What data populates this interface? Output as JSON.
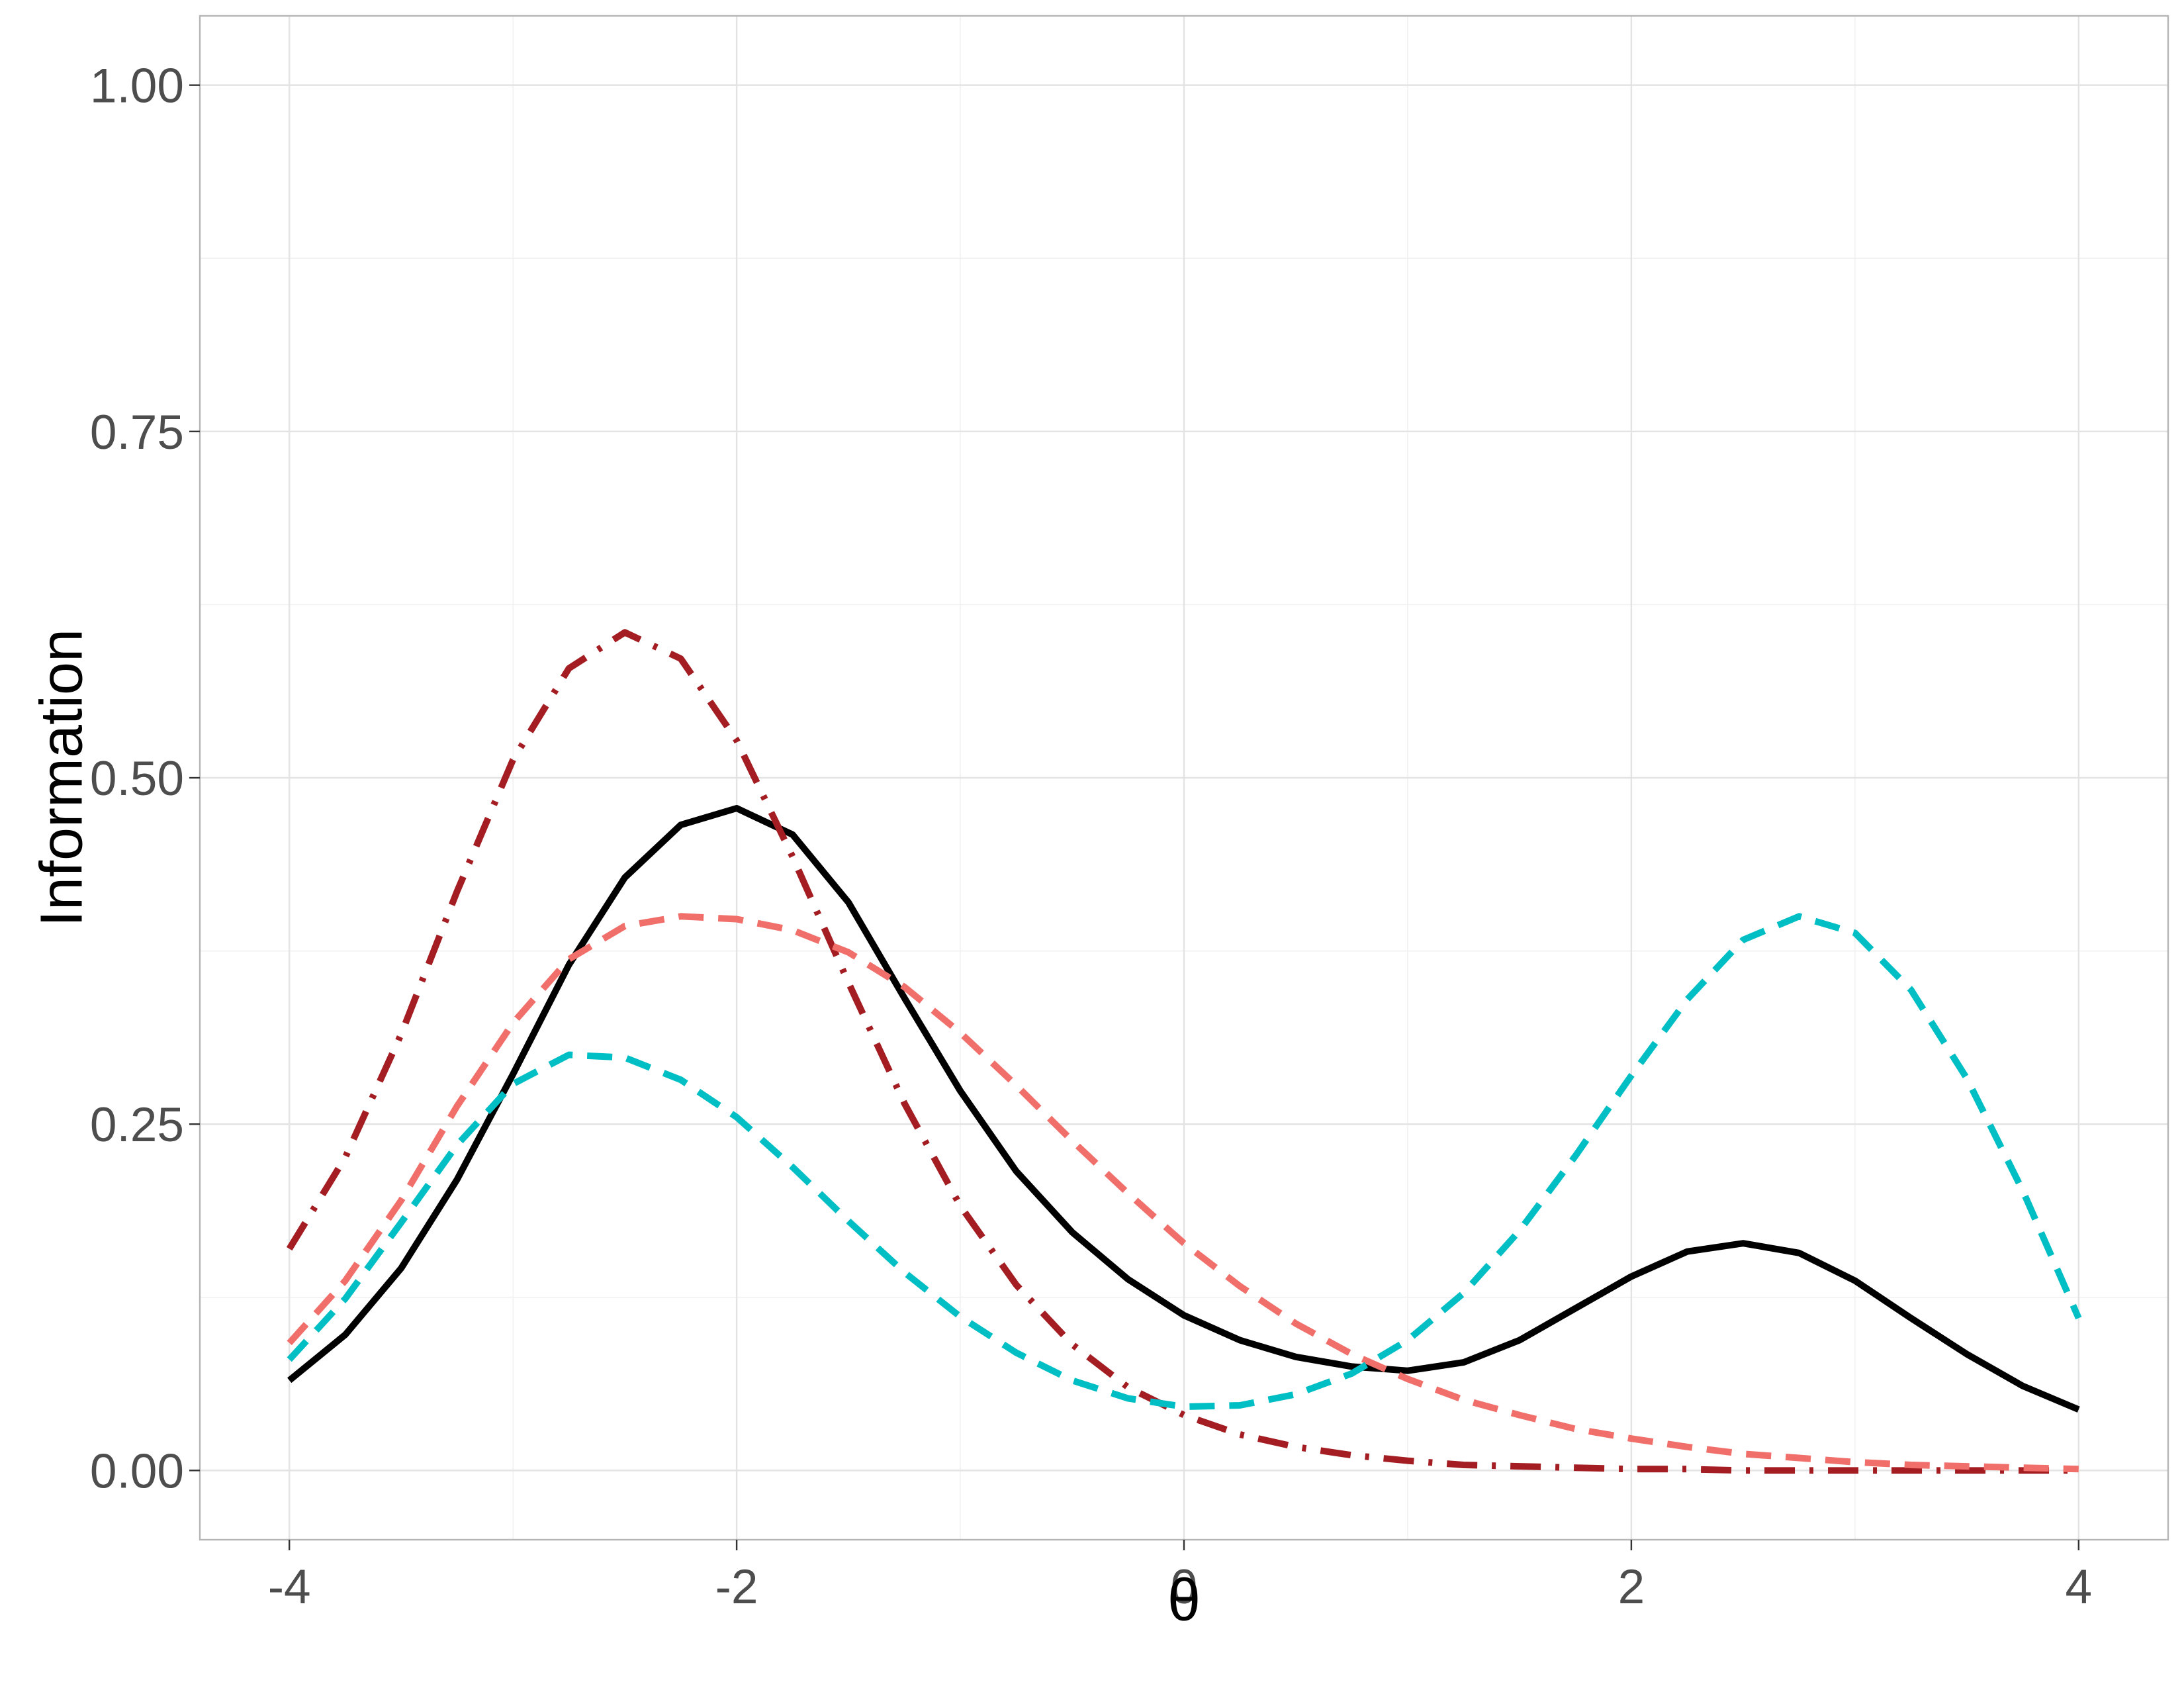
{
  "chart_data": {
    "type": "line",
    "title": "",
    "xlabel": "θ",
    "ylabel": "Information",
    "xlim": [
      -4.4,
      4.4
    ],
    "ylim": [
      -0.05,
      1.05
    ],
    "x_ticks": [
      -4,
      -2,
      0,
      2,
      4
    ],
    "x_tick_labels": [
      "-4",
      "-2",
      "0",
      "2",
      "4"
    ],
    "y_ticks": [
      0,
      0.25,
      0.5,
      0.75,
      1
    ],
    "y_tick_labels": [
      "0.00",
      "0.25",
      "0.50",
      "0.75",
      "1.00"
    ],
    "x_minor_ticks": [
      -3,
      -1,
      1,
      3
    ],
    "y_minor_ticks": [
      0.125,
      0.375,
      0.625,
      0.875
    ],
    "grid": true,
    "legend": "none",
    "x": [
      -4,
      -3.75,
      -3.5,
      -3.25,
      -3,
      -2.75,
      -2.5,
      -2.25,
      -2,
      -1.75,
      -1.5,
      -1.25,
      -1,
      -0.75,
      -0.5,
      -0.25,
      0,
      0.25,
      0.5,
      0.75,
      1,
      1.25,
      1.5,
      1.75,
      2,
      2.25,
      2.5,
      2.75,
      3,
      3.25,
      3.5,
      3.75,
      4
    ],
    "series": [
      {
        "color": "#000000",
        "dash": "solid",
        "values": [
          0.065,
          0.098,
          0.146,
          0.21,
          0.286,
          0.365,
          0.428,
          0.466,
          0.478,
          0.459,
          0.41,
          0.341,
          0.274,
          0.216,
          0.172,
          0.138,
          0.112,
          0.094,
          0.082,
          0.075,
          0.072,
          0.078,
          0.094,
          0.117,
          0.14,
          0.158,
          0.164,
          0.157,
          0.137,
          0.11,
          0.084,
          0.061,
          0.044
        ]
      },
      {
        "color": "#a31d22",
        "dash": "dashdot",
        "values": [
          0.16,
          0.226,
          0.315,
          0.418,
          0.513,
          0.579,
          0.605,
          0.586,
          0.527,
          0.443,
          0.352,
          0.265,
          0.191,
          0.134,
          0.091,
          0.06,
          0.04,
          0.026,
          0.017,
          0.011,
          0.007,
          0.004,
          0.003,
          0.002,
          0.001,
          0.001,
          0.0,
          0.0,
          0.0,
          0.0,
          0.0,
          0.0,
          0.0
        ]
      },
      {
        "color": "#f16f6a",
        "dash": "dashed",
        "values": [
          0.092,
          0.137,
          0.195,
          0.263,
          0.323,
          0.369,
          0.393,
          0.4,
          0.398,
          0.39,
          0.374,
          0.349,
          0.316,
          0.278,
          0.238,
          0.2,
          0.164,
          0.133,
          0.106,
          0.084,
          0.066,
          0.051,
          0.04,
          0.03,
          0.023,
          0.017,
          0.012,
          0.009,
          0.006,
          0.004,
          0.003,
          0.002,
          0.001
        ]
      },
      {
        "color": "#00bfc4",
        "dash": "dashed",
        "values": [
          0.08,
          0.124,
          0.179,
          0.235,
          0.279,
          0.3,
          0.298,
          0.282,
          0.255,
          0.219,
          0.18,
          0.143,
          0.111,
          0.085,
          0.065,
          0.052,
          0.046,
          0.047,
          0.055,
          0.07,
          0.094,
          0.128,
          0.173,
          0.227,
          0.285,
          0.34,
          0.383,
          0.4,
          0.388,
          0.347,
          0.283,
          0.202,
          0.11
        ]
      }
    ]
  }
}
